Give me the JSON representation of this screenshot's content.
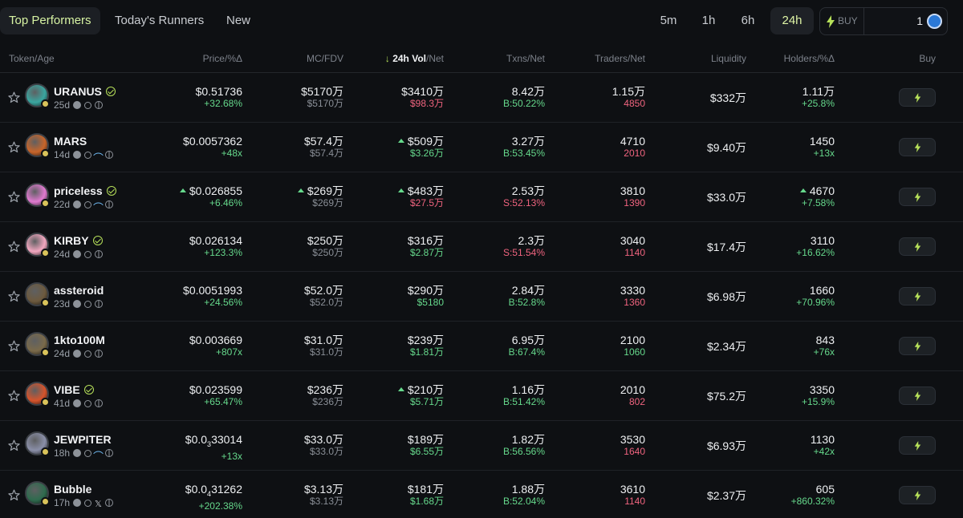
{
  "tabs": [
    {
      "label": "Top Performers",
      "active": true
    },
    {
      "label": "Today's Runners",
      "active": false
    },
    {
      "label": "New",
      "active": false
    }
  ],
  "timeframes": [
    {
      "label": "5m",
      "active": false
    },
    {
      "label": "1h",
      "active": false
    },
    {
      "label": "6h",
      "active": false
    },
    {
      "label": "24h",
      "active": true
    }
  ],
  "buy": {
    "label": "BUY",
    "amount": "1",
    "icon": "bolt-icon",
    "currency_icon": "usdc-coin-icon"
  },
  "columns": {
    "token": "Token/Age",
    "price": "Price/%Δ",
    "mc": "MC/FDV",
    "vol_arrow": "↓",
    "vol_bold": "24h Vol",
    "vol_rest": "/Net",
    "txns": "Txns/Net",
    "traders": "Traders/Net",
    "liquidity": "Liquidity",
    "holders": "Holders/%Δ",
    "buy": "Buy"
  },
  "colors": {
    "accent": "#d7f3a3",
    "positive": "#66d98c",
    "negative": "#f0647f",
    "background": "#0e1013"
  },
  "rows": [
    {
      "name": "URANUS",
      "verified": true,
      "age": "25d",
      "socials": [
        "users",
        "search",
        "globe"
      ],
      "avatar_color": "#3aa6a0",
      "price": "$0.51736",
      "price_change": "+32.68%",
      "price_up": false,
      "mc": "$5170万",
      "fdv": "$5170万",
      "mc_up": false,
      "vol": "$3410万",
      "vol_net": "$98.3万",
      "vol_net_dir": "neg",
      "vol_up": false,
      "txns": "8.42万",
      "txns_net": "B:50.22%",
      "txns_net_dir": "pos",
      "traders": "1.15万",
      "traders_net": "4850",
      "traders_net_dir": "neg",
      "liquidity": "$332万",
      "holders": "1.11万",
      "holders_change": "+25.8%",
      "holders_up": false
    },
    {
      "name": "MARS",
      "verified": false,
      "age": "14d",
      "socials": [
        "users",
        "search",
        "leaf",
        "globe"
      ],
      "avatar_color": "#c8652a",
      "price": "$0.0057362",
      "price_change": "+48x",
      "price_up": false,
      "mc": "$57.4万",
      "fdv": "$57.4万",
      "mc_up": false,
      "vol": "$509万",
      "vol_net": "$3.26万",
      "vol_net_dir": "pos",
      "vol_up": true,
      "txns": "3.27万",
      "txns_net": "B:53.45%",
      "txns_net_dir": "pos",
      "traders": "4710",
      "traders_net": "2010",
      "traders_net_dir": "neg",
      "liquidity": "$9.40万",
      "holders": "1450",
      "holders_change": "+13x",
      "holders_up": false
    },
    {
      "name": "priceless",
      "verified": true,
      "age": "22d",
      "socials": [
        "users",
        "search",
        "leaf",
        "globe"
      ],
      "avatar_color": "#e07ad0",
      "price": "$0.026855",
      "price_change": "+6.46%",
      "price_up": true,
      "mc": "$269万",
      "fdv": "$269万",
      "mc_up": true,
      "vol": "$483万",
      "vol_net": "$27.5万",
      "vol_net_dir": "neg",
      "vol_up": true,
      "txns": "2.53万",
      "txns_net": "S:52.13%",
      "txns_net_dir": "neg",
      "traders": "3810",
      "traders_net": "1390",
      "traders_net_dir": "neg",
      "liquidity": "$33.0万",
      "holders": "4670",
      "holders_change": "+7.58%",
      "holders_up": true
    },
    {
      "name": "KIRBY",
      "verified": true,
      "age": "24d",
      "socials": [
        "users",
        "search",
        "globe"
      ],
      "avatar_color": "#f2a7c0",
      "price": "$0.026134",
      "price_change": "+123.3%",
      "price_up": false,
      "mc": "$250万",
      "fdv": "$250万",
      "mc_up": false,
      "vol": "$316万",
      "vol_net": "$2.87万",
      "vol_net_dir": "pos",
      "vol_up": false,
      "txns": "2.3万",
      "txns_net": "S:51.54%",
      "txns_net_dir": "neg",
      "traders": "3040",
      "traders_net": "1140",
      "traders_net_dir": "neg",
      "liquidity": "$17.4万",
      "holders": "3110",
      "holders_change": "+16.62%",
      "holders_up": false
    },
    {
      "name": "assteroid",
      "verified": false,
      "age": "23d",
      "socials": [
        "users",
        "search",
        "globe"
      ],
      "avatar_color": "#6d5a3e",
      "price": "$0.0051993",
      "price_change": "+24.56%",
      "price_up": false,
      "mc": "$52.0万",
      "fdv": "$52.0万",
      "mc_up": false,
      "vol": "$290万",
      "vol_net": "$5180",
      "vol_net_dir": "pos",
      "vol_up": false,
      "txns": "2.84万",
      "txns_net": "B:52.8%",
      "txns_net_dir": "pos",
      "traders": "3330",
      "traders_net": "1360",
      "traders_net_dir": "neg",
      "liquidity": "$6.98万",
      "holders": "1660",
      "holders_change": "+70.96%",
      "holders_up": false
    },
    {
      "name": "1kto100M",
      "verified": false,
      "age": "24d",
      "socials": [
        "users",
        "search",
        "globe"
      ],
      "avatar_color": "#7a6a4a",
      "price": "$0.003669",
      "price_change": "+807x",
      "price_up": false,
      "mc": "$31.0万",
      "fdv": "$31.0万",
      "mc_up": false,
      "vol": "$239万",
      "vol_net": "$1.81万",
      "vol_net_dir": "pos",
      "vol_up": false,
      "txns": "6.95万",
      "txns_net": "B:67.4%",
      "txns_net_dir": "pos",
      "traders": "2100",
      "traders_net": "1060",
      "traders_net_dir": "pos",
      "liquidity": "$2.34万",
      "holders": "843",
      "holders_change": "+76x",
      "holders_up": false
    },
    {
      "name": "VIBE",
      "verified": true,
      "age": "41d",
      "socials": [
        "users",
        "search",
        "globe"
      ],
      "avatar_color": "#d6542c",
      "price": "$0.023599",
      "price_change": "+65.47%",
      "price_up": false,
      "mc": "$236万",
      "fdv": "$236万",
      "mc_up": false,
      "vol": "$210万",
      "vol_net": "$5.71万",
      "vol_net_dir": "pos",
      "vol_up": true,
      "txns": "1.16万",
      "txns_net": "B:51.42%",
      "txns_net_dir": "pos",
      "traders": "2010",
      "traders_net": "802",
      "traders_net_dir": "neg",
      "liquidity": "$75.2万",
      "holders": "3350",
      "holders_change": "+15.9%",
      "holders_up": false
    },
    {
      "name": "JEWPITER",
      "verified": false,
      "age": "18h",
      "socials": [
        "users",
        "search",
        "leaf",
        "globe"
      ],
      "avatar_color": "#8a8fa8",
      "price_main": "$0.0",
      "price_sub": "3",
      "price_tail": "33014",
      "price_change": "+13x",
      "price_up": false,
      "mc": "$33.0万",
      "fdv": "$33.0万",
      "mc_up": false,
      "vol": "$189万",
      "vol_net": "$6.55万",
      "vol_net_dir": "pos",
      "vol_up": false,
      "txns": "1.82万",
      "txns_net": "B:56.56%",
      "txns_net_dir": "pos",
      "traders": "3530",
      "traders_net": "1640",
      "traders_net_dir": "neg",
      "liquidity": "$6.93万",
      "holders": "1130",
      "holders_change": "+42x",
      "holders_up": false
    },
    {
      "name": "Bubble",
      "verified": false,
      "age": "17h",
      "socials": [
        "users",
        "search",
        "x",
        "globe"
      ],
      "avatar_color": "#2f6b4e",
      "price_main": "$0.0",
      "price_sub": "4",
      "price_tail": "31262",
      "price_change": "+202.38%",
      "price_up": false,
      "mc": "$3.13万",
      "fdv": "$3.13万",
      "mc_up": false,
      "vol": "$181万",
      "vol_net": "$1.68万",
      "vol_net_dir": "pos",
      "vol_up": false,
      "txns": "1.88万",
      "txns_net": "B:52.04%",
      "txns_net_dir": "pos",
      "traders": "3610",
      "traders_net": "1140",
      "traders_net_dir": "neg",
      "liquidity": "$2.37万",
      "holders": "605",
      "holders_change": "+860.32%",
      "holders_up": false
    }
  ]
}
